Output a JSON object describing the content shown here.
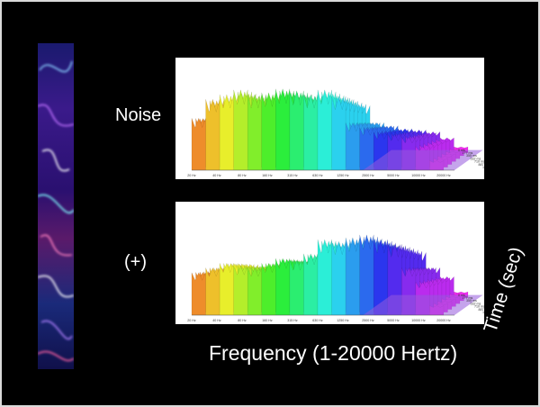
{
  "labels": {
    "noise": "Noise",
    "plus": "(+)",
    "frequency": "Frequency (1-20000 Hertz)",
    "time": "Time (sec)"
  },
  "chart_data": [
    {
      "type": "area",
      "name": "noise-waterfall",
      "x_ticks": [
        "20 Hz",
        "40 Hz",
        "80 Hz",
        "160 Hz",
        "315 Hz",
        "630 Hz",
        "1250 Hz",
        "2500 Hz",
        "5000 Hz",
        "10000 Hz",
        "20000 Hz"
      ],
      "depth_ticks": [
        "0 ms",
        "177 ms",
        "355 ms",
        "532 ms",
        "710 ms",
        "887 ms",
        "1.064 s"
      ],
      "peaks": [
        0.55,
        0.75,
        0.8,
        0.85,
        0.8,
        0.82,
        0.86,
        0.84,
        0.8,
        0.85,
        0.78,
        0.5,
        0.45,
        0.4,
        0.38,
        0.35,
        0.25,
        0.1
      ]
    },
    {
      "type": "area",
      "name": "combined-waterfall",
      "x_ticks": [
        "20 Hz",
        "40 Hz",
        "80 Hz",
        "160 Hz",
        "315 Hz",
        "630 Hz",
        "1250 Hz",
        "2500 Hz",
        "5000 Hz",
        "10000 Hz",
        "20000 Hz"
      ],
      "depth_ticks": [
        "0 ms",
        "177 ms",
        "355 ms",
        "532 ms",
        "710 ms",
        "887 ms",
        "1.064 s"
      ],
      "peaks": [
        0.45,
        0.5,
        0.55,
        0.52,
        0.5,
        0.55,
        0.6,
        0.58,
        0.65,
        0.8,
        0.78,
        0.82,
        0.85,
        0.8,
        0.75,
        0.5,
        0.35,
        0.1
      ]
    }
  ]
}
